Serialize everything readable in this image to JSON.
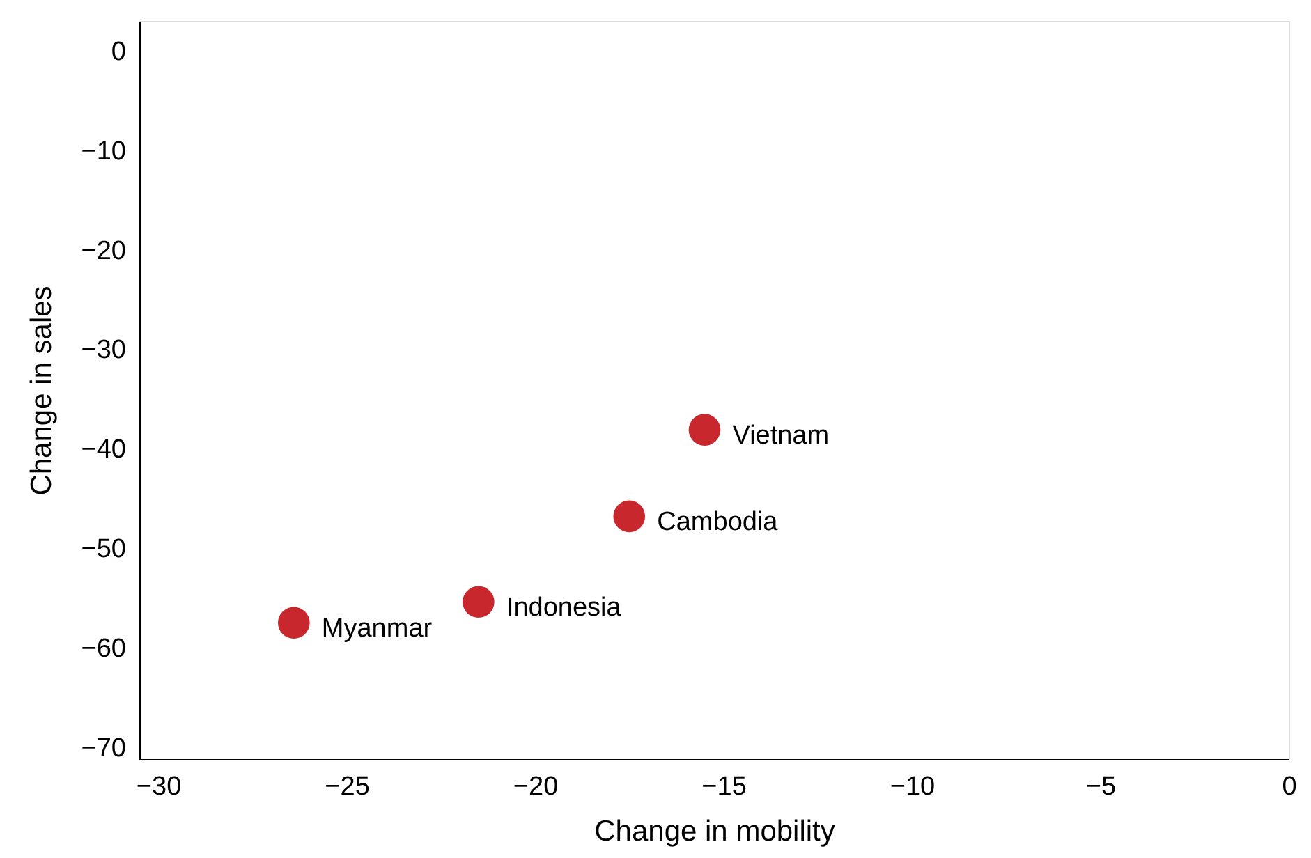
{
  "chart_data": {
    "type": "scatter",
    "xlabel": "Change in mobility",
    "ylabel": "Change in sales",
    "x": [
      -26.4,
      -21.5,
      -17.5,
      -15.5
    ],
    "values": [
      -57.5,
      -55.4,
      -46.8,
      -38.1
    ],
    "color": "#c8282d",
    "marker": "circle",
    "grid": false,
    "xlim": [
      -30.5,
      0
    ],
    "xticks": [
      -30,
      -25,
      -20,
      -15,
      -10,
      -5,
      0
    ],
    "ylim": [
      -71.2,
      3
    ],
    "yticks": [
      -70,
      -60,
      -50,
      -40,
      -30,
      -20,
      -10,
      0
    ],
    "annotations": [
      {
        "text": "Myanmar",
        "x": -26.4,
        "y": -57.5
      },
      {
        "text": "Indonesia",
        "x": -21.5,
        "y": -55.4
      },
      {
        "text": "Cambodia",
        "x": -17.5,
        "y": -46.8
      },
      {
        "text": "Vietnam",
        "x": -15.5,
        "y": -38.1
      }
    ]
  }
}
